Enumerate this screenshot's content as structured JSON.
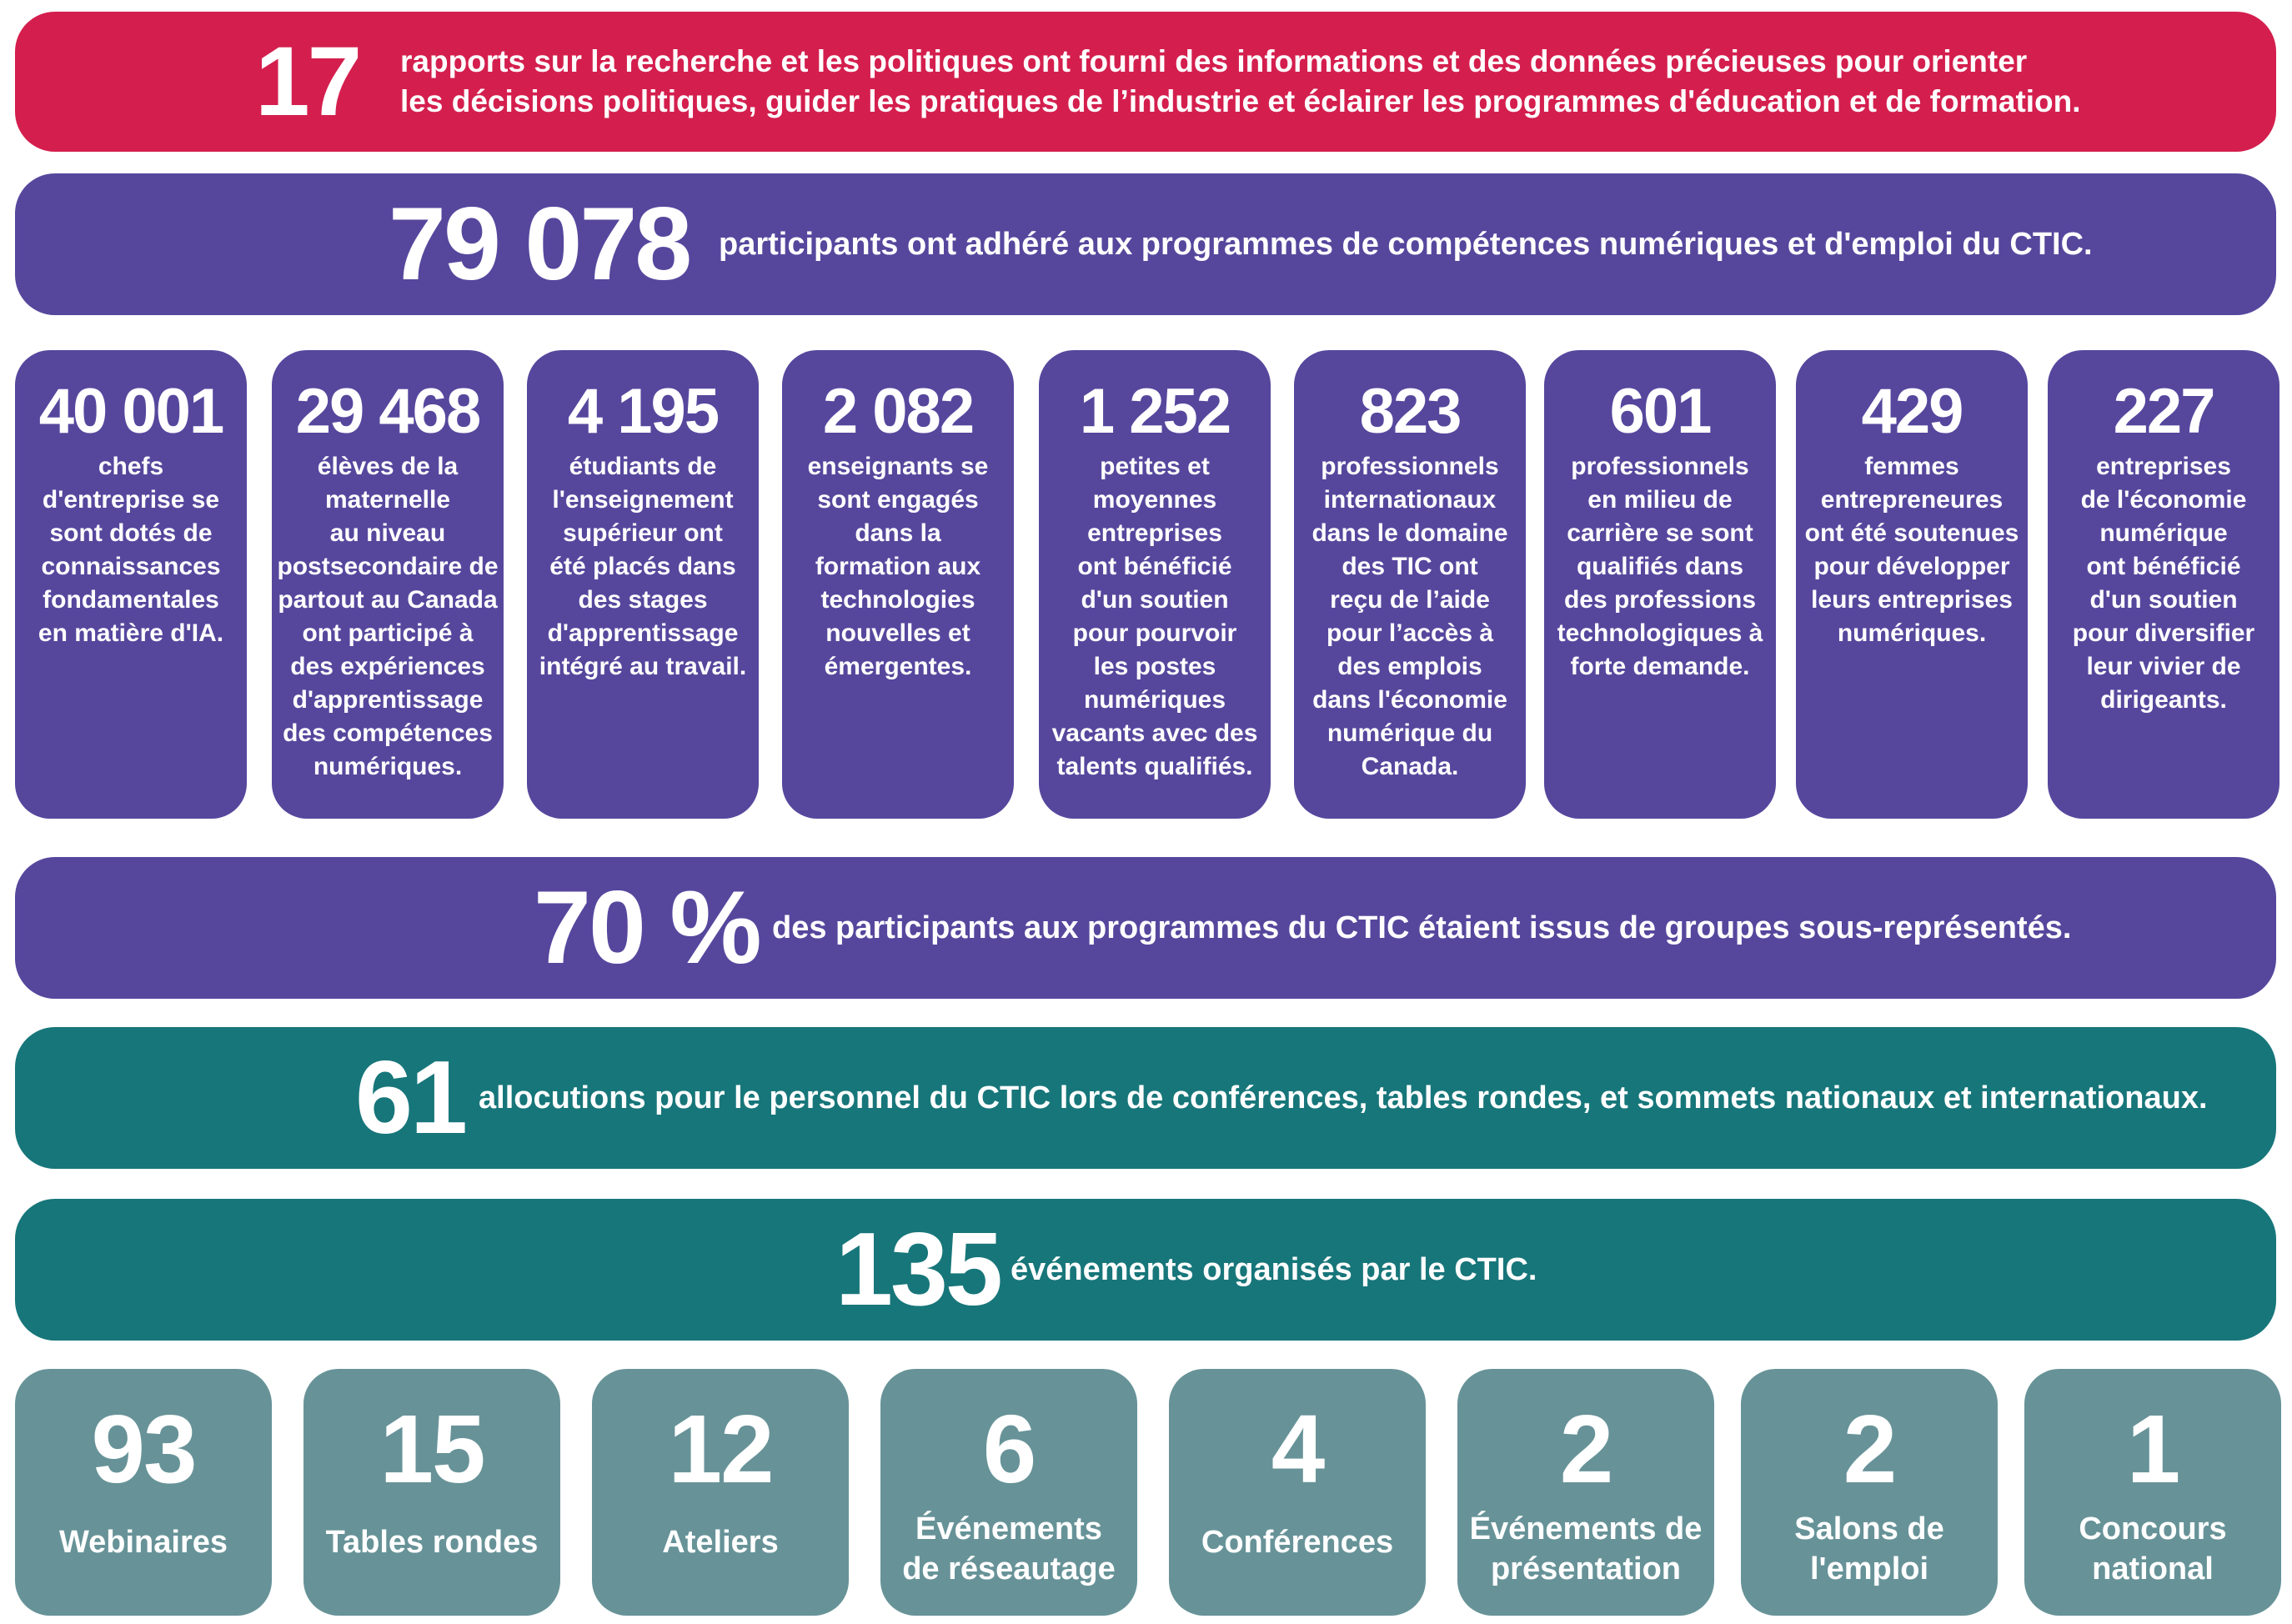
{
  "colors": {
    "red": "#d41f4e",
    "purple": "#56479d",
    "teal": "#17767a",
    "grey": "#679398"
  },
  "rows": {
    "reports": {
      "number": "17",
      "line1": "rapports sur la recherche et les politiques ont fourni des informations et des données précieuses pour orienter",
      "line2": "les décisions politiques, guider les pratiques de l’industrie et éclairer les programmes d'éducation et de formation."
    },
    "participants": {
      "number": "79 078",
      "text": "participants ont adhéré aux programmes de compétences numériques et d'emploi du CTIC."
    },
    "underrepresented": {
      "number": "70 %",
      "text": "des participants aux programmes du CTIC étaient issus de groupes sous-représentés."
    },
    "speeches": {
      "number": "61",
      "text": "allocutions pour le personnel du CTIC lors de conférences, tables rondes, et sommets nationaux et internationaux."
    },
    "events": {
      "number": "135",
      "text": "événements organisés par le CTIC."
    }
  },
  "participant_cards": [
    {
      "number": "40 001",
      "lines": [
        "chefs",
        "d'entreprise se",
        "sont dotés de",
        "connaissances",
        "fondamentales",
        "en matière d'IA."
      ]
    },
    {
      "number": "29 468",
      "lines": [
        "élèves de la",
        "maternelle",
        "au niveau",
        "postsecondaire de",
        "partout au Canada",
        "ont participé à",
        "des expériences",
        "d'apprentissage",
        "des compétences",
        "numériques."
      ]
    },
    {
      "number": "4 195",
      "lines": [
        "étudiants de",
        "l'enseignement",
        "supérieur ont",
        "été placés dans",
        "des stages",
        "d'apprentissage",
        "intégré au travail."
      ]
    },
    {
      "number": "2 082",
      "lines": [
        "enseignants se",
        "sont engagés",
        "dans la",
        "formation aux",
        "technologies",
        "nouvelles et",
        "émergentes."
      ]
    },
    {
      "number": "1 252",
      "lines": [
        "petites et",
        "moyennes",
        "entreprises",
        "ont bénéficié",
        "d'un soutien",
        "pour pourvoir",
        "les postes",
        "numériques",
        "vacants avec des",
        "talents qualifiés."
      ]
    },
    {
      "number": "823",
      "lines": [
        "professionnels",
        "internationaux",
        "dans le domaine",
        "des TIC ont",
        "reçu de l’aide",
        "pour l’accès à",
        "des emplois",
        "dans l'économie",
        "numérique du",
        "Canada."
      ]
    },
    {
      "number": "601",
      "lines": [
        "professionnels",
        "en milieu de",
        "carrière se sont",
        "qualifiés dans",
        "des professions",
        "technologiques à",
        "forte demande."
      ]
    },
    {
      "number": "429",
      "lines": [
        "femmes",
        "entrepreneures",
        "ont été soutenues",
        "pour développer",
        "leurs entreprises",
        "numériques."
      ]
    },
    {
      "number": "227",
      "lines": [
        "entreprises",
        "de l'économie",
        "numérique",
        "ont bénéficié",
        "d'un soutien",
        "pour diversifier",
        "leur vivier de",
        "dirigeants."
      ]
    }
  ],
  "event_cards": [
    {
      "number": "93",
      "lines": [
        "Webinaires"
      ]
    },
    {
      "number": "15",
      "lines": [
        "Tables rondes"
      ]
    },
    {
      "number": "12",
      "lines": [
        "Ateliers"
      ]
    },
    {
      "number": "6",
      "lines": [
        "Événements",
        "de réseautage"
      ]
    },
    {
      "number": "4",
      "lines": [
        "Conférences"
      ]
    },
    {
      "number": "2",
      "lines": [
        "Événements de",
        "présentation"
      ]
    },
    {
      "number": "2",
      "lines": [
        "Salons de",
        "l'emploi"
      ]
    },
    {
      "number": "1",
      "lines": [
        "Concours",
        "national"
      ]
    }
  ]
}
